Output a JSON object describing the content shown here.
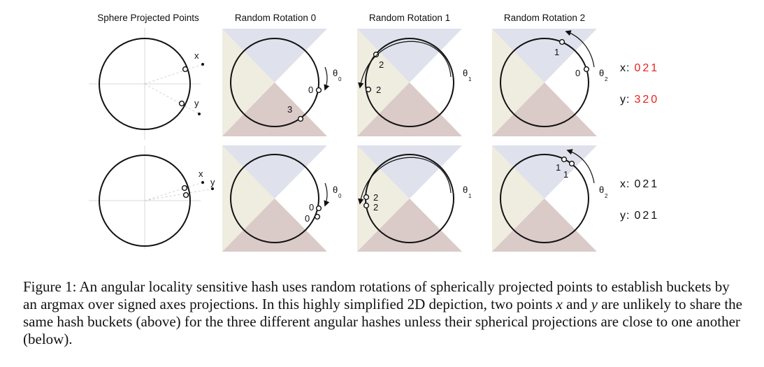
{
  "colors": {
    "blue": "#dfe1ec",
    "pink": "#dacac8",
    "beige": "#efece0",
    "red": "#e8211b",
    "ink": "#111111"
  },
  "headers": {
    "sphere": "Sphere Projected Points",
    "rot0": "Random Rotation 0",
    "rot1": "Random Rotation 1",
    "rot2": "Random Rotation 2"
  },
  "theta": {
    "t0": "θ",
    "t0_sub": "0",
    "t1": "θ",
    "t1_sub": "1",
    "t2": "θ",
    "t2_sub": "2"
  },
  "points": {
    "x": "x",
    "y": "y"
  },
  "row1": {
    "r0": {
      "a": "0",
      "b": "3"
    },
    "r1": {
      "a": "2",
      "b": "2"
    },
    "r2": {
      "a": "1",
      "b": "0"
    },
    "hash_x_label": "x:",
    "hash_x_digits": [
      "0",
      "2",
      "1"
    ],
    "hash_y_label": "y:",
    "hash_y_digits": [
      "3",
      "2",
      "0"
    ]
  },
  "row2": {
    "r0": {
      "a": "0",
      "b": "0"
    },
    "r1": {
      "a": "2",
      "b": "2"
    },
    "r2": {
      "a": "1",
      "b": "1"
    },
    "hash_x_label": "x:",
    "hash_x_digits": [
      "0",
      "2",
      "1"
    ],
    "hash_y_label": "y:",
    "hash_y_digits": [
      "0",
      "2",
      "1"
    ]
  },
  "caption": {
    "p1": "Figure 1: An angular locality sensitive hash uses random rotations of spherically projected points to establish buckets by an argmax over signed axes projections. In this highly simplified 2D depiction, two points ",
    "var_x": "x",
    "p2": " and ",
    "var_y": "y",
    "p3": " are unlikely to share the same hash buckets (above) for the three different angular hashes unless their spherical projections are close to one another (below)."
  }
}
